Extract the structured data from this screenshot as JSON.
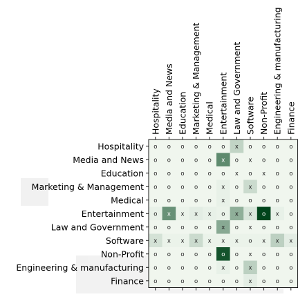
{
  "chart_data": {
    "type": "heatmap",
    "rows": [
      "Hospitality",
      "Media and News",
      "Education",
      "Marketing & Management",
      "Medical",
      "Entertainment",
      "Law and Government",
      "Software",
      "Non-Profit",
      "Engineering & manufacturing",
      "Finance"
    ],
    "columns": [
      "Hospitality",
      "Media and News",
      "Education",
      "Marketing & Management",
      "Medical",
      "Entertainment",
      "Law and Government",
      "Software",
      "Non-Profit",
      "Engineering & manufacturing",
      "Finance"
    ],
    "values": [
      [
        0.03,
        0.03,
        0.03,
        0.03,
        0.03,
        0.03,
        0.22,
        0.03,
        0.03,
        0.03,
        0.03
      ],
      [
        0.03,
        0.03,
        0.03,
        0.03,
        0.03,
        0.62,
        0.03,
        0.03,
        0.03,
        0.03,
        0.03
      ],
      [
        0.03,
        0.03,
        0.03,
        0.03,
        0.03,
        0.03,
        0.03,
        0.03,
        0.03,
        0.03,
        0.03
      ],
      [
        0.03,
        0.03,
        0.03,
        0.03,
        0.03,
        0.06,
        0.03,
        0.18,
        0.03,
        0.03,
        0.03
      ],
      [
        0.03,
        0.03,
        0.03,
        0.03,
        0.03,
        0.06,
        0.03,
        0.03,
        0.03,
        0.03,
        0.03
      ],
      [
        0.06,
        0.58,
        0.05,
        0.08,
        0.06,
        0.05,
        0.42,
        0.12,
        1.0,
        0.06,
        0.03
      ],
      [
        0.03,
        0.03,
        0.03,
        0.03,
        0.03,
        0.45,
        0.03,
        0.03,
        0.03,
        0.03,
        0.03
      ],
      [
        0.14,
        0.05,
        0.05,
        0.18,
        0.05,
        0.05,
        0.05,
        0.05,
        0.05,
        0.24,
        0.08
      ],
      [
        0.03,
        0.03,
        0.03,
        0.03,
        0.03,
        0.92,
        0.03,
        0.03,
        0.03,
        0.03,
        0.03
      ],
      [
        0.03,
        0.03,
        0.03,
        0.03,
        0.03,
        0.06,
        0.03,
        0.24,
        0.03,
        0.03,
        0.03
      ],
      [
        0.03,
        0.03,
        0.03,
        0.03,
        0.03,
        0.03,
        0.03,
        0.08,
        0.03,
        0.03,
        0.03
      ]
    ],
    "markers": [
      [
        "o",
        "o",
        "o",
        "o",
        "o",
        "o",
        "x",
        "o",
        "o",
        "o",
        "o"
      ],
      [
        "o",
        "o",
        "o",
        "o",
        "o",
        "x",
        "o",
        "x",
        "o",
        "o",
        "o"
      ],
      [
        "o",
        "o",
        "o",
        "o",
        "o",
        "o",
        "x",
        "o",
        "x",
        "o",
        "o"
      ],
      [
        "o",
        "o",
        "o",
        "o",
        "o",
        "x",
        "o",
        "x",
        "o",
        "o",
        "o"
      ],
      [
        "o",
        "o",
        "o",
        "o",
        "o",
        "x",
        "o",
        "o",
        "o",
        "o",
        "o"
      ],
      [
        "o",
        "x",
        "x",
        "x",
        "x",
        "o",
        "x",
        "x",
        "o",
        "x",
        "o"
      ],
      [
        "o",
        "o",
        "o",
        "o",
        "o",
        "x",
        "o",
        "x",
        "o",
        "o",
        "o"
      ],
      [
        "x",
        "x",
        "x",
        "x",
        "x",
        "x",
        "x",
        "o",
        "x",
        "x",
        "x"
      ],
      [
        "o",
        "o",
        "o",
        "o",
        "o",
        "o",
        "o",
        "x",
        "o",
        "o",
        "o"
      ],
      [
        "o",
        "o",
        "o",
        "o",
        "o",
        "x",
        "o",
        "x",
        "o",
        "o",
        "o"
      ],
      [
        "o",
        "o",
        "o",
        "o",
        "o",
        "o",
        "o",
        "x",
        "o",
        "o",
        "o"
      ]
    ],
    "colormap": [
      "#f7fcf5",
      "#00441b"
    ],
    "title": "",
    "xlabel": "",
    "ylabel": "",
    "grid": false,
    "legend": "none"
  }
}
